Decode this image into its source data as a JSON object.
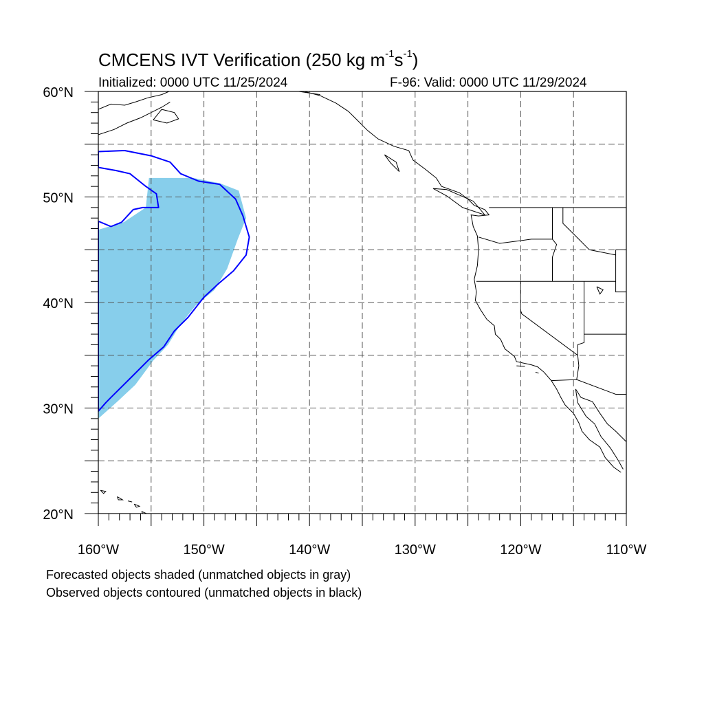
{
  "title": {
    "main": "CMCENS IVT Verification (250 kg m",
    "exp1": "-1",
    "mid": "s",
    "exp2": "-1",
    "end": ")"
  },
  "initialized": "Initialized: 0000 UTC 11/25/2024",
  "valid": "F-96: Valid: 0000 UTC 11/29/2024",
  "axes": {
    "lat_range": [
      20,
      60
    ],
    "lon_range": [
      -160,
      -110
    ],
    "lat_labels": [
      {
        "lat": 60,
        "text": "60°N"
      },
      {
        "lat": 50,
        "text": "50°N"
      },
      {
        "lat": 40,
        "text": "40°N"
      },
      {
        "lat": 30,
        "text": "30°N"
      },
      {
        "lat": 20,
        "text": "20°N"
      }
    ],
    "lon_labels": [
      {
        "lon": -160,
        "text": "160°W"
      },
      {
        "lon": -150,
        "text": "150°W"
      },
      {
        "lon": -140,
        "text": "140°W"
      },
      {
        "lon": -130,
        "text": "130°W"
      },
      {
        "lon": -120,
        "text": "120°W"
      },
      {
        "lon": -110,
        "text": "110°W"
      }
    ],
    "grid_step_deg": 5,
    "grid_style": "dashed"
  },
  "colors": {
    "forecast_fill": "#87ceeb",
    "observed_contour": "#0000ff",
    "coastline": "#000000",
    "grid": "#555555"
  },
  "forecast_object": {
    "label": "matched forecast object",
    "polygon": [
      [
        -160,
        46.9
      ],
      [
        -157.6,
        47.6
      ],
      [
        -155.5,
        49.0
      ],
      [
        -155.2,
        51.8
      ],
      [
        -151.0,
        51.8
      ],
      [
        -148.5,
        51.3
      ],
      [
        -146.7,
        50.6
      ],
      [
        -146.0,
        48.0
      ],
      [
        -146.8,
        46.0
      ],
      [
        -147.8,
        43.2
      ],
      [
        -149.0,
        41.2
      ],
      [
        -150.8,
        39.7
      ],
      [
        -152.3,
        37.8
      ],
      [
        -153.4,
        36.0
      ],
      [
        -154.8,
        34.5
      ],
      [
        -156.5,
        32.2
      ],
      [
        -158.2,
        30.6
      ],
      [
        -160,
        29.0
      ]
    ]
  },
  "observed_object": {
    "label": "matched observed object",
    "polygon": [
      [
        -160,
        54.3
      ],
      [
        -157.5,
        54.4
      ],
      [
        -155.0,
        53.9
      ],
      [
        -153.2,
        53.3
      ],
      [
        -152.2,
        52.2
      ],
      [
        -150.5,
        51.5
      ],
      [
        -148.5,
        51.2
      ],
      [
        -147.0,
        49.8
      ],
      [
        -146.3,
        48.2
      ],
      [
        -145.7,
        46.2
      ],
      [
        -146.0,
        44.5
      ],
      [
        -147.2,
        43.0
      ],
      [
        -148.6,
        41.8
      ],
      [
        -150.0,
        40.5
      ],
      [
        -151.5,
        38.6
      ],
      [
        -152.8,
        37.3
      ],
      [
        -153.8,
        35.8
      ],
      [
        -155.3,
        34.5
      ],
      [
        -156.8,
        33.0
      ],
      [
        -158.8,
        31.0
      ],
      [
        -159.3,
        30.5
      ],
      [
        -160,
        29.7
      ],
      [
        -160,
        47.7
      ],
      [
        -158.8,
        47.2
      ],
      [
        -157.8,
        47.6
      ],
      [
        -156.7,
        48.8
      ],
      [
        -155.8,
        49.0
      ],
      [
        -154.3,
        49.0
      ],
      [
        -154.5,
        50.3
      ],
      [
        -155.5,
        51.0
      ],
      [
        -157.0,
        52.2
      ],
      [
        -158.3,
        52.5
      ],
      [
        -160,
        52.8
      ]
    ]
  },
  "notes": {
    "line1": "Forecasted objects shaded (unmatched objects in gray)",
    "line2": "Observed objects contoured (unmatched objects in black)"
  }
}
